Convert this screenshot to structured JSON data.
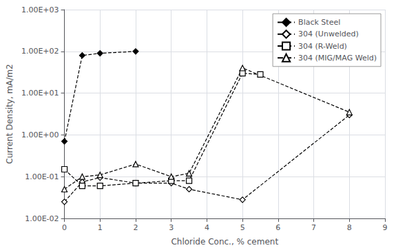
{
  "chart_data": {
    "type": "line",
    "xlabel": "Chloride Conc., % cement",
    "ylabel": "Current Density, mA/m2",
    "xlim": [
      0,
      9
    ],
    "xticks": [
      0,
      1,
      2,
      3,
      4,
      5,
      6,
      7,
      8,
      9
    ],
    "ylim": [
      0.01,
      1000
    ],
    "yticks": [
      {
        "value": 0.01,
        "label": "1.00E-02"
      },
      {
        "value": 0.1,
        "label": "1.00E-01"
      },
      {
        "value": 1.0,
        "label": "1.00E+00"
      },
      {
        "value": 10.0,
        "label": "1.00E+01"
      },
      {
        "value": 100.0,
        "label": "1.00E+02"
      },
      {
        "value": 1000.0,
        "label": "1.00E+03"
      }
    ],
    "log": "y",
    "grid": true,
    "legend": "upper right",
    "series": [
      {
        "name": "Black Steel",
        "color": "black",
        "marker": "diamond",
        "line_style": "dashed",
        "x": [
          0,
          0.5,
          1.0,
          2.0
        ],
        "values": [
          0.7,
          80.0,
          90.0,
          100.0
        ]
      },
      {
        "name": "304 (Unwelded)",
        "color": "black",
        "marker": "diamond-open",
        "line_style": "dashed",
        "x": [
          0,
          0.5,
          1.0,
          2.0,
          3.0,
          3.5,
          5.0,
          8.0
        ],
        "values": [
          0.025,
          0.075,
          0.095,
          0.07,
          0.07,
          0.05,
          0.028,
          3.0
        ]
      },
      {
        "name": "304 (R-Weld)",
        "color": "black",
        "marker": "square-open",
        "line_style": "dashed",
        "x": [
          0,
          0.5,
          1.0,
          2.0,
          3.0,
          3.5,
          5.0,
          5.5
        ],
        "values": [
          0.15,
          0.06,
          0.06,
          0.07,
          0.08,
          0.08,
          30.0,
          28.0
        ]
      },
      {
        "name": "304 (MIG/MAG Weld)",
        "color": "black",
        "marker": "triangle-open",
        "line_style": "dashed",
        "x": [
          0,
          0.5,
          1.0,
          2.0,
          3.0,
          3.5,
          5.0,
          8.0
        ],
        "values": [
          0.05,
          0.1,
          0.11,
          0.2,
          0.1,
          0.12,
          40.0,
          3.5
        ]
      }
    ]
  }
}
